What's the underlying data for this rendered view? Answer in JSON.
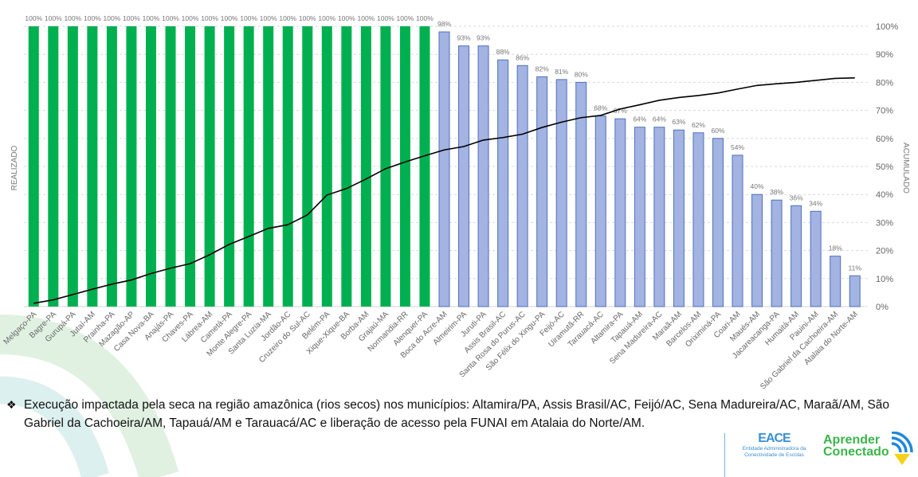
{
  "chart_data": {
    "type": "bar+line",
    "categories": [
      "Melgaço-PA",
      "Bagre-PA",
      "Gurupá-PA",
      "Jutaí-AM",
      "Prainha-PA",
      "Mazagão-AP",
      "Casa Nova-BA",
      "Anajás-PA",
      "Chaves-PA",
      "Lábrea-AM",
      "Cametá-PA",
      "Monte Alegre-PA",
      "Santa Luzia-MA",
      "Jordão-AC",
      "Cruzeiro do Sul-AC",
      "Belém-PA",
      "Xique-Xique-BA",
      "Borba-AM",
      "Grajaú-MA",
      "Normandia-RR",
      "Alenquer-PA",
      "Boca do Acre-AM",
      "Almeirim-PA",
      "Juruti-PA",
      "Assis Brasil-AC",
      "Santa Rosa do Purus-AC",
      "São Félix do Xingu-PA",
      "Feijó-AC",
      "Uiramutã-RR",
      "Tarauacá-AC",
      "Altamira-PA",
      "Tapauá-AM",
      "Sena Madureira-AC",
      "Maraã-AM",
      "Barcelos-AM",
      "Oriximiná-PA",
      "Coari-AM",
      "Maués-AM",
      "Jacareacanga-PA",
      "Humaitá-AM",
      "Pauini-AM",
      "São Gabriel da Cachoeira-AM",
      "Atalaia do Norte-AM"
    ],
    "series": [
      {
        "type": "bar",
        "values": [
          100,
          100,
          100,
          100,
          100,
          100,
          100,
          100,
          100,
          100,
          100,
          100,
          100,
          100,
          100,
          100,
          100,
          100,
          100,
          100,
          100,
          98,
          93,
          93,
          88,
          86,
          82,
          81,
          80,
          68,
          67,
          64,
          64,
          63,
          62,
          60,
          54,
          40,
          38,
          36,
          34,
          18,
          11
        ],
        "labels": [
          "100%",
          "100%",
          "100%",
          "100%",
          "100%",
          "100%",
          "100%",
          "100%",
          "100%",
          "100%",
          "100%",
          "100%",
          "100%",
          "100%",
          "100%",
          "100%",
          "100%",
          "100%",
          "100%",
          "100%",
          "100%",
          "98%",
          "93%",
          "93%",
          "88%",
          "86%",
          "82%",
          "81%",
          "80%",
          "68%",
          "67%",
          "64%",
          "64%",
          "63%",
          "62%",
          "60%",
          "54%",
          "40%",
          "38%",
          "36%",
          "34%",
          "18%",
          "11%"
        ]
      },
      {
        "type": "line",
        "axis": "right",
        "values": [
          1.2,
          2.4,
          4.3,
          6.2,
          8,
          9.5,
          11.8,
          13.7,
          15.3,
          18.5,
          22.2,
          25,
          27.9,
          29.2,
          32.7,
          39.8,
          42.1,
          45.5,
          49.2,
          51.6,
          53.8,
          55.9,
          57.1,
          59.4,
          60.3,
          61.5,
          63.9,
          65.8,
          67.4,
          68.2,
          70.5,
          72,
          73.6,
          74.6,
          75.3,
          76.2,
          77.6,
          78.9,
          79.5,
          80,
          80.7,
          81.4,
          81.6
        ]
      }
    ],
    "colors": {
      "complete": "#00b050",
      "partial": "#a3b3e2",
      "partial_border": "#4f71be",
      "line": "#000000"
    },
    "ylabel_left": "REALIZADO",
    "ylabel_right": "ACUMULADO",
    "ylim": [
      0,
      100
    ],
    "right_ticks": [
      "0%",
      "10%",
      "20%",
      "30%",
      "40%",
      "50%",
      "60%",
      "70%",
      "80%",
      "90%",
      "100%"
    ],
    "grid": true
  },
  "note": {
    "bullet": "❖",
    "text": "Execução impactada pela seca na região amazônica (rios secos) nos municípios: Altamira/PA, Assis Brasil/AC, Feijó/AC, Sena Madureira/AC, Maraã/AM,  São Gabriel da Cachoeira/AM, Tapauá/AM e Tarauacá/AC e liberação de acesso pela FUNAI em Atalaia do Norte/AM."
  },
  "logos": {
    "eace": "EACE",
    "eace_sub1": "Entidade Administradora da",
    "eace_sub2": "Conectividade de Escolas",
    "ac_line1": "Aprender",
    "ac_line2": "Conectado"
  }
}
